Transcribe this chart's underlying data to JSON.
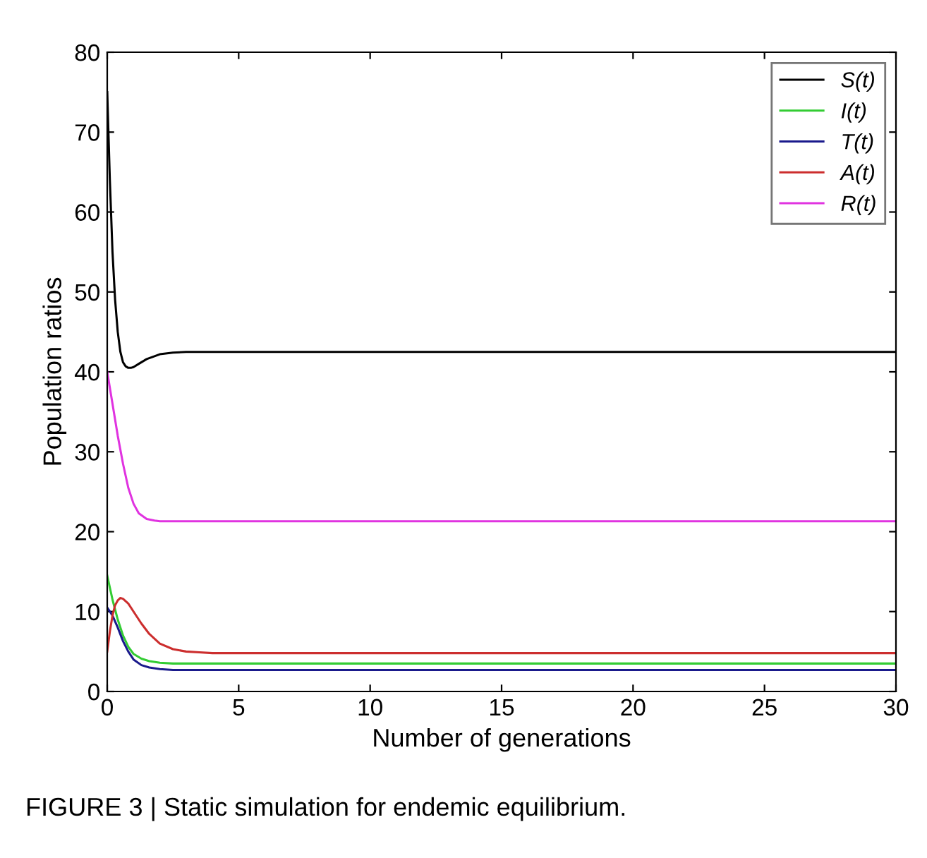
{
  "chart_data": {
    "type": "line",
    "xlabel": "Number of generations",
    "ylabel": "Population ratios",
    "annotations": [
      "FIGURE 3 | Static simulation for endemic equilibrium."
    ],
    "xlim": [
      0,
      30
    ],
    "ylim": [
      0,
      80
    ],
    "xticks": [
      0,
      5,
      10,
      15,
      20,
      25,
      30
    ],
    "yticks": [
      0,
      10,
      20,
      30,
      40,
      50,
      60,
      70,
      80
    ],
    "grid": false,
    "legend": "top right",
    "marker": "none",
    "line_style": "solid",
    "series": [
      {
        "name": "S(t)",
        "color": "#000000",
        "x": [
          0,
          0.1,
          0.2,
          0.3,
          0.4,
          0.5,
          0.6,
          0.7,
          0.8,
          0.9,
          1.0,
          1.2,
          1.5,
          2,
          2.5,
          3,
          4,
          30
        ],
        "values": [
          75,
          64,
          55,
          49,
          45,
          42.5,
          41.2,
          40.7,
          40.5,
          40.5,
          40.6,
          41,
          41.6,
          42.2,
          42.4,
          42.5,
          42.5,
          42.5
        ]
      },
      {
        "name": "I(t)",
        "color": "#33cc33",
        "x": [
          0,
          0.2,
          0.4,
          0.6,
          0.8,
          1.0,
          1.3,
          1.6,
          2,
          2.5,
          3,
          30
        ],
        "values": [
          14.5,
          11.5,
          9,
          7,
          5.6,
          4.7,
          4.1,
          3.8,
          3.6,
          3.5,
          3.5,
          3.5
        ]
      },
      {
        "name": "T(t)",
        "color": "#1a1a8c",
        "x": [
          0,
          0.2,
          0.4,
          0.6,
          0.8,
          1.0,
          1.3,
          1.6,
          2,
          2.5,
          3,
          30
        ],
        "values": [
          10.5,
          9.5,
          8,
          6.3,
          5,
          4,
          3.3,
          3,
          2.8,
          2.7,
          2.7,
          2.7
        ]
      },
      {
        "name": "A(t)",
        "color": "#cc2e2e",
        "x": [
          0,
          0.1,
          0.2,
          0.3,
          0.4,
          0.5,
          0.6,
          0.8,
          1.0,
          1.3,
          1.6,
          2,
          2.5,
          3,
          3.5,
          4,
          30
        ],
        "values": [
          5,
          7.5,
          9.5,
          10.8,
          11.4,
          11.7,
          11.6,
          11,
          10,
          8.5,
          7.2,
          6,
          5.3,
          5,
          4.9,
          4.8,
          4.8
        ]
      },
      {
        "name": "R(t)",
        "color": "#e033e0",
        "x": [
          0,
          0.2,
          0.4,
          0.6,
          0.8,
          1.0,
          1.2,
          1.5,
          1.8,
          2,
          2.5,
          30
        ],
        "values": [
          40,
          36,
          32,
          28.5,
          25.5,
          23.5,
          22.3,
          21.6,
          21.4,
          21.3,
          21.3,
          21.3
        ]
      }
    ]
  }
}
